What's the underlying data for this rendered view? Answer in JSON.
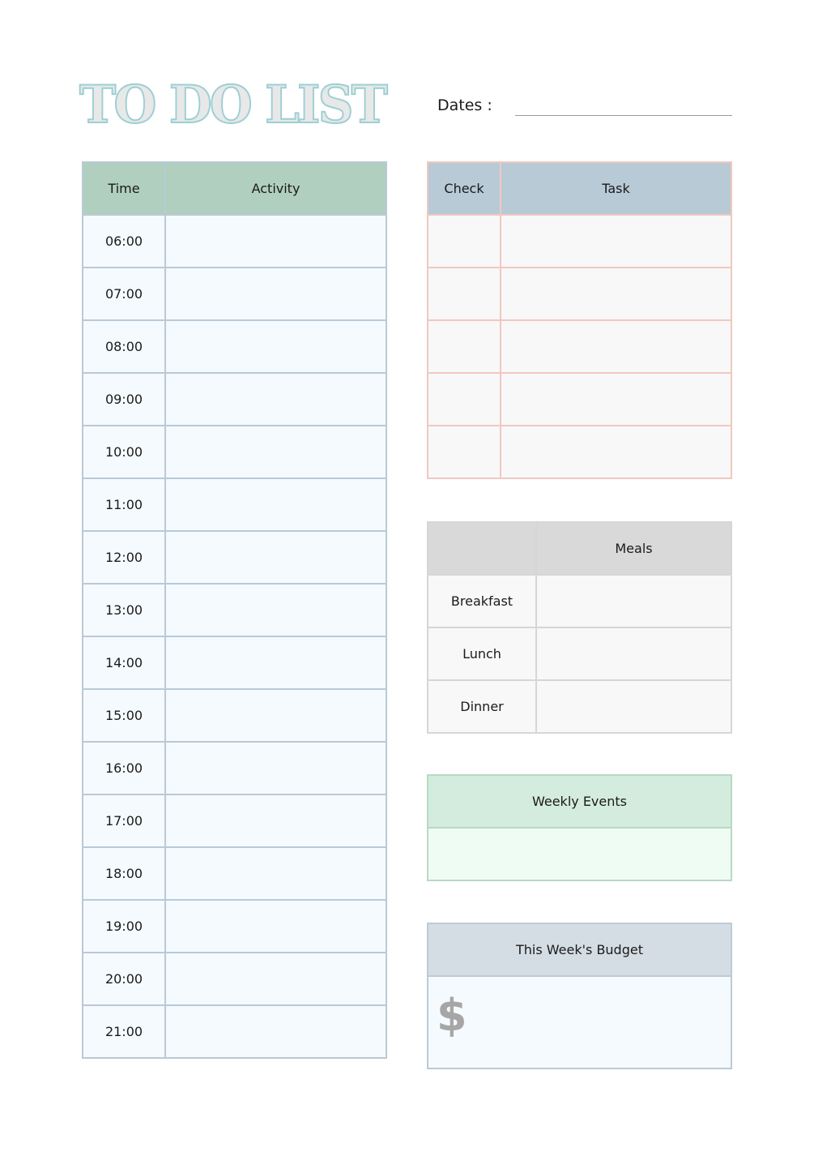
{
  "title": "TO DO LIST",
  "dates_label": "Dates :",
  "schedule": {
    "headers": {
      "time": "Time",
      "activity": "Activity"
    },
    "times": [
      "06:00",
      "07:00",
      "08:00",
      "09:00",
      "10:00",
      "11:00",
      "12:00",
      "13:00",
      "14:00",
      "15:00",
      "16:00",
      "17:00",
      "18:00",
      "19:00",
      "20:00",
      "21:00"
    ]
  },
  "tasks": {
    "headers": {
      "check": "Check",
      "task": "Task"
    },
    "row_count": 5
  },
  "meals": {
    "header": "Meals",
    "rows": [
      "Breakfast",
      "Lunch",
      "Dinner"
    ]
  },
  "weekly_events": {
    "header": "Weekly Events"
  },
  "budget": {
    "header": "This Week's Budget",
    "currency_symbol": "$"
  },
  "colors": {
    "schedule_header": "#b1cfbe",
    "task_header": "#b8cad6",
    "task_border": "#f0c8c0",
    "events_header": "#d4ecdd",
    "budget_header": "#d5dde4",
    "title_outline": "#9ccfd3"
  }
}
